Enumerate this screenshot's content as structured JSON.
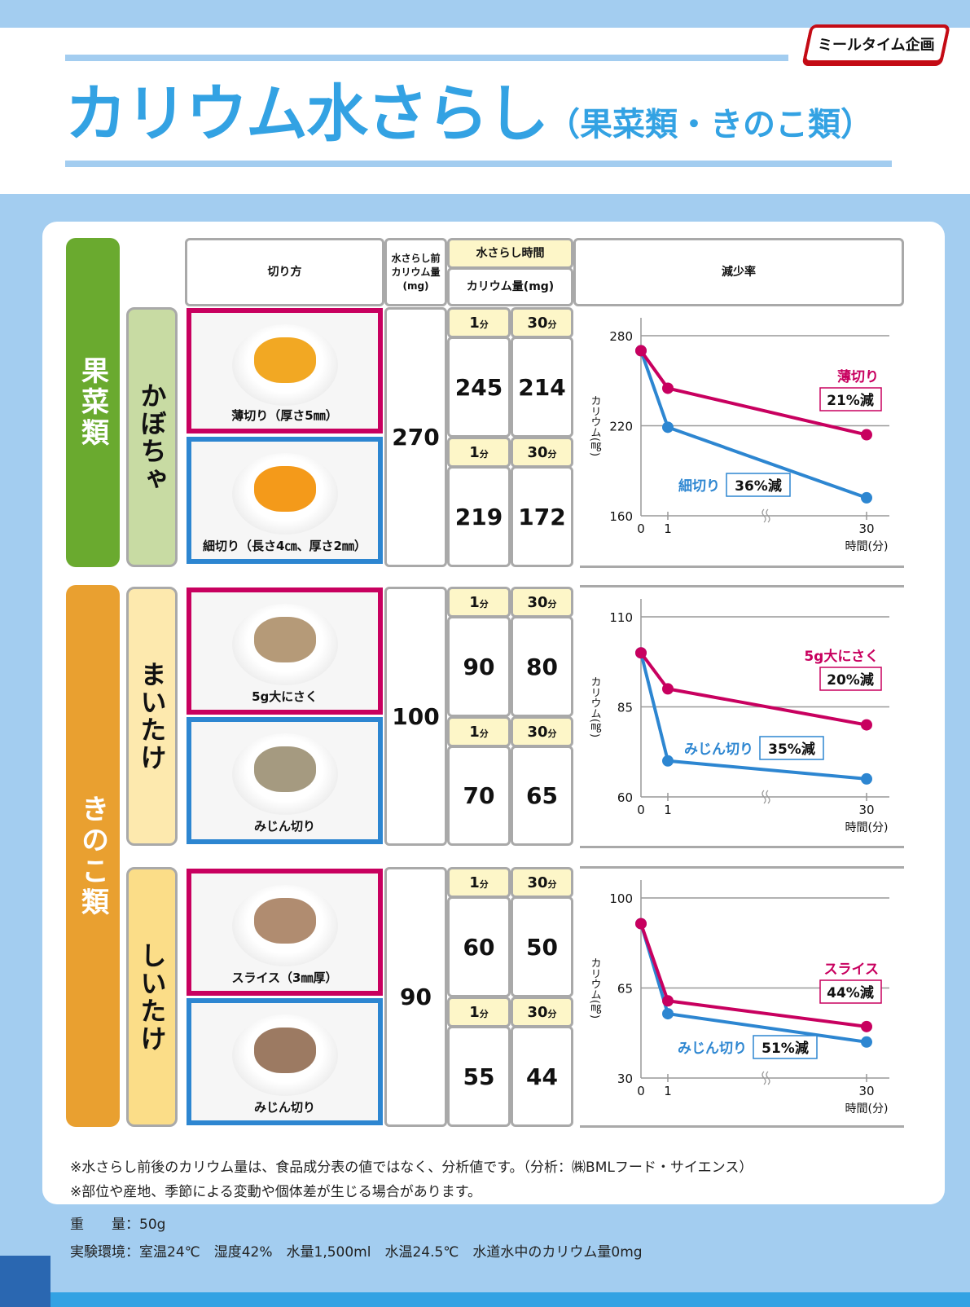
{
  "header": {
    "title": "カリウム水さらし",
    "subtitle": "（果菜類・きのこ類）",
    "logo": "ミールタイム企画"
  },
  "table_header": {
    "cut_method": "切り方",
    "before_l1": "水さらし前",
    "before_l2": "カリウム量",
    "before_l3": "(mg)",
    "time": "水さらし時間",
    "potassium": "カリウム量(mg)",
    "reduction": "減少率"
  },
  "categories": [
    {
      "label": "果菜類",
      "color": "#6aaa2f"
    },
    {
      "label": "きのこ類",
      "color": "#e9a030"
    }
  ],
  "vegetables": [
    {
      "name": "かぼちゃ",
      "bg": "#c8dba3",
      "before": "270",
      "cuts": [
        {
          "caption": "薄切り（厚さ5㎜）",
          "t1_label": "1",
          "t30_label": "30",
          "unit": "分",
          "t1": "245",
          "t30": "214"
        },
        {
          "caption": "細切り（長さ4㎝、厚さ2㎜）",
          "t1_label": "1",
          "t30_label": "30",
          "unit": "分",
          "t1": "219",
          "t30": "172"
        }
      ]
    },
    {
      "name": "まいたけ",
      "bg": "#fde9ae",
      "before": "100",
      "cuts": [
        {
          "caption": "5g大にさく",
          "t1_label": "1",
          "t30_label": "30",
          "unit": "分",
          "t1": "90",
          "t30": "80"
        },
        {
          "caption": "みじん切り",
          "t1_label": "1",
          "t30_label": "30",
          "unit": "分",
          "t1": "70",
          "t30": "65"
        }
      ]
    },
    {
      "name": "しいたけ",
      "bg": "#fbdd88",
      "before": "90",
      "cuts": [
        {
          "caption": "スライス（3㎜厚）",
          "t1_label": "1",
          "t30_label": "30",
          "unit": "分",
          "t1": "60",
          "t30": "50"
        },
        {
          "caption": "みじん切り",
          "t1_label": "1",
          "t30_label": "30",
          "unit": "分",
          "t1": "55",
          "t30": "44"
        }
      ]
    }
  ],
  "chart_common": {
    "ylabel": "カリウム(㎎)",
    "xlabel": "時間(分)",
    "x_ticks": [
      "0",
      "1",
      "30"
    ]
  },
  "chart_data": [
    {
      "type": "line",
      "title": "かぼちゃ",
      "x": [
        0,
        1,
        30
      ],
      "xlabel": "時間(分)",
      "ylabel": "カリウム(㎎)",
      "ylim": [
        160,
        280
      ],
      "y_ticks": [
        "280",
        "220",
        "160"
      ],
      "grid": true,
      "series": [
        {
          "name": "薄切り",
          "values": [
            270,
            245,
            214
          ],
          "color": "#c8005f",
          "annotation": "21%減"
        },
        {
          "name": "細切り",
          "values": [
            270,
            219,
            172
          ],
          "color": "#2d86d1",
          "annotation": "36%減"
        }
      ]
    },
    {
      "type": "line",
      "title": "まいたけ",
      "x": [
        0,
        1,
        30
      ],
      "xlabel": "時間(分)",
      "ylabel": "カリウム(㎎)",
      "ylim": [
        60,
        110
      ],
      "y_ticks": [
        "110",
        "85",
        "60"
      ],
      "grid": true,
      "series": [
        {
          "name": "5g大にさく",
          "values": [
            100,
            90,
            80
          ],
          "color": "#c8005f",
          "annotation": "20%減"
        },
        {
          "name": "みじん切り",
          "values": [
            100,
            70,
            65
          ],
          "color": "#2d86d1",
          "annotation": "35%減"
        }
      ]
    },
    {
      "type": "line",
      "title": "しいたけ",
      "x": [
        0,
        1,
        30
      ],
      "xlabel": "時間(分)",
      "ylabel": "カリウム(㎎)",
      "ylim": [
        30,
        100
      ],
      "y_ticks": [
        "100",
        "65",
        "30"
      ],
      "grid": true,
      "series": [
        {
          "name": "スライス",
          "values": [
            90,
            60,
            50
          ],
          "color": "#c8005f",
          "annotation": "44%減"
        },
        {
          "name": "みじん切り",
          "values": [
            90,
            55,
            44
          ],
          "color": "#2d86d1",
          "annotation": "51%減"
        }
      ]
    }
  ],
  "notes": [
    "※水さらし前後のカリウム量は、食品成分表の値ではなく、分析値です。（分析：㈱BMLフード・サイエンス）",
    "※部位や産地、季節による変動や個体差が生じる場合があります。"
  ],
  "info": {
    "weight": "重　　量：50g",
    "environment": "実験環境：室温24℃　湿度42%　水量1,500ml　水温24.5℃　水道水中のカリウム量0mg"
  },
  "colors": {
    "title": "#33a2e3",
    "pink": "#c8005f",
    "blue": "#2d86d1",
    "page_bg": "#a3cdf0",
    "cell_yellow": "#fdf6c8"
  }
}
